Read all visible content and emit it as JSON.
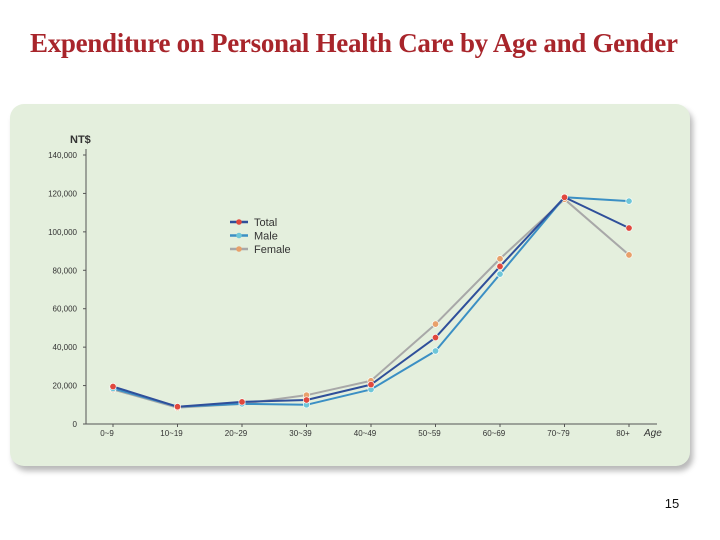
{
  "slide": {
    "title": "Expenditure on Personal Health Care by Age and Gender",
    "page_number": "15"
  },
  "colors": {
    "title": "#a8252b",
    "panel_bg": "#e4efdd",
    "axis": "#555555"
  },
  "chart_data": {
    "type": "line",
    "title": "",
    "ylabel": "NT$",
    "xlabel": "Age",
    "ylim": [
      0,
      140000
    ],
    "yticks": [
      0,
      20000,
      40000,
      60000,
      80000,
      100000,
      120000,
      140000
    ],
    "ytick_labels": [
      "0",
      "20,000",
      "40,000",
      "60,000",
      "80,000",
      "100,000",
      "120,000",
      "140,000"
    ],
    "categories": [
      "0~9",
      "10~19",
      "20~29",
      "30~39",
      "40~49",
      "50~59",
      "60~69",
      "70~79",
      "80+"
    ],
    "grid": false,
    "legend_position": "upper-left",
    "series": [
      {
        "name": "Total",
        "line_color": "#2f4f9a",
        "marker_color": "#e0483e",
        "values": [
          19500,
          9000,
          11500,
          12500,
          20500,
          45000,
          82000,
          118000,
          102000
        ]
      },
      {
        "name": "Male",
        "line_color": "#3b8fc4",
        "marker_color": "#6ec6d8",
        "values": [
          18500,
          9000,
          10500,
          10000,
          18000,
          38000,
          78000,
          118000,
          116000
        ]
      },
      {
        "name": "Female",
        "line_color": "#a8a8a8",
        "marker_color": "#e8a06a",
        "values": [
          18000,
          8500,
          10500,
          15000,
          22500,
          52000,
          86000,
          117000,
          88000
        ]
      }
    ]
  }
}
